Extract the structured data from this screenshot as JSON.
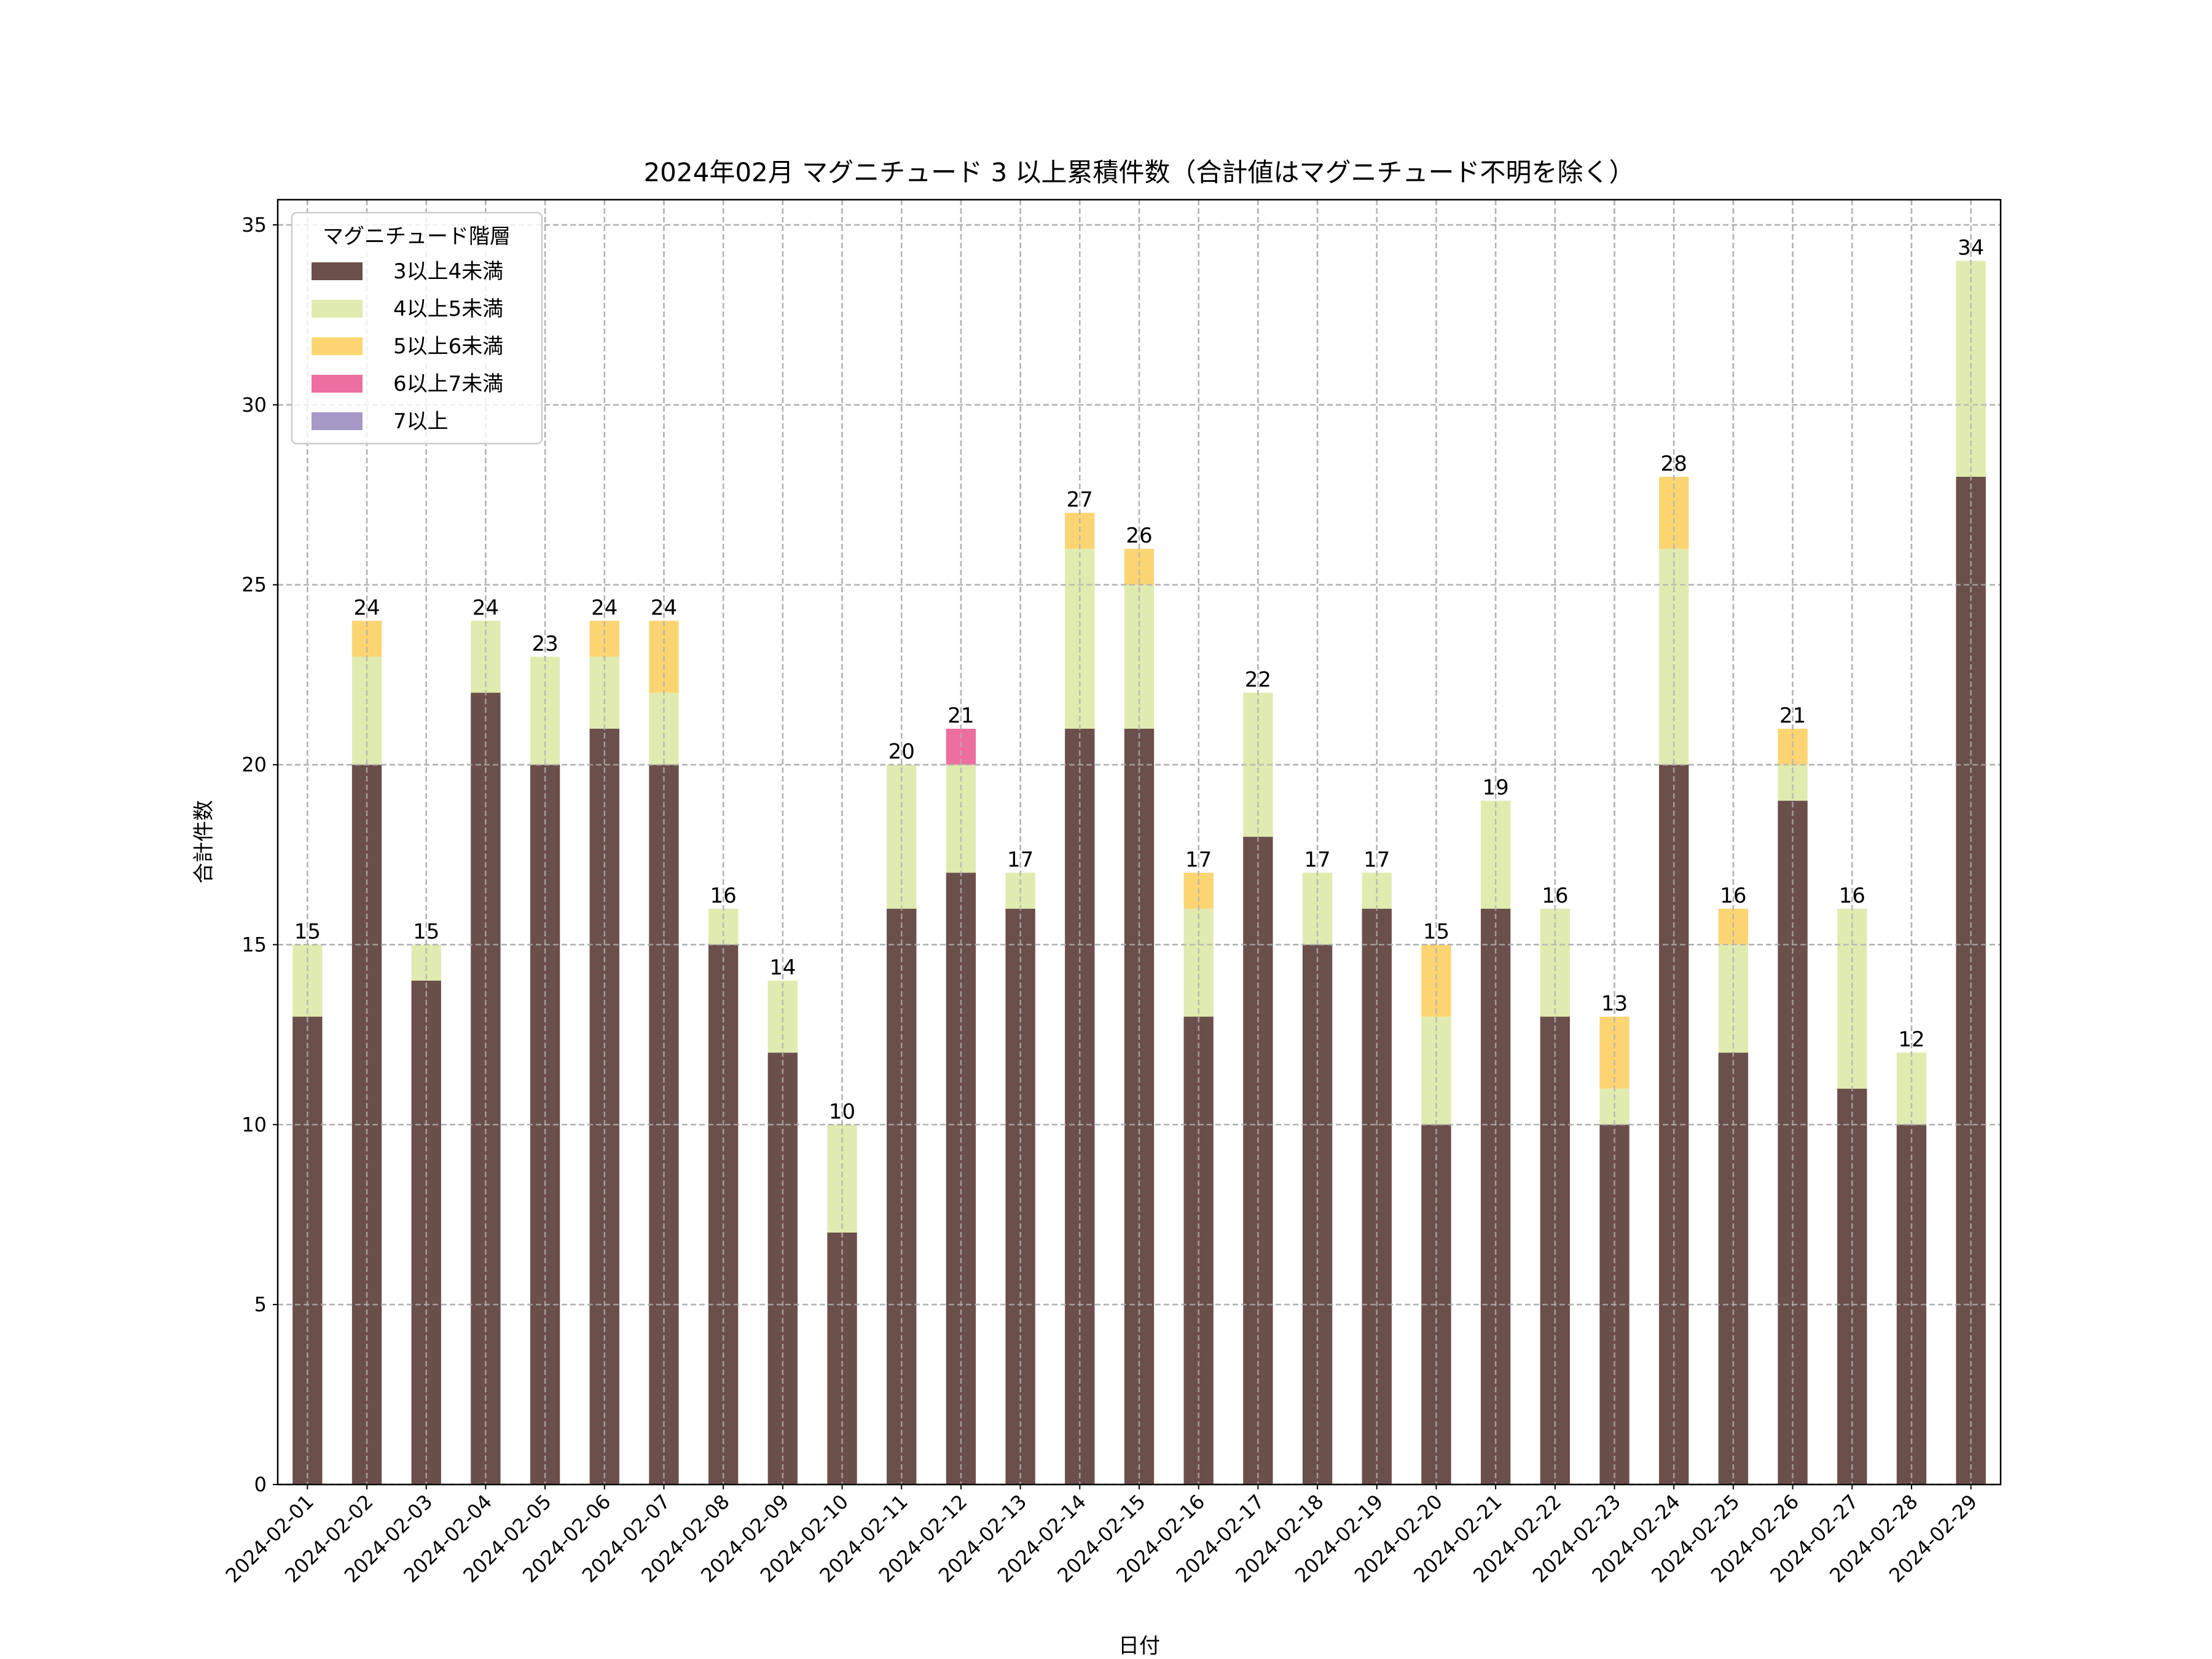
{
  "chart_data": {
    "type": "bar",
    "stacked": true,
    "title": "2024年02月 マグニチュード 3 以上累積件数（合計値はマグニチュード不明を除く）",
    "xlabel": "日付",
    "ylabel": "合計件数",
    "ylim": [
      0,
      35.7
    ],
    "yticks": [
      0,
      5,
      10,
      15,
      20,
      25,
      30,
      35
    ],
    "grid": true,
    "legend": {
      "title": "マグニチュード階層",
      "placement": "top-left"
    },
    "categories": [
      "2024-02-01",
      "2024-02-02",
      "2024-02-03",
      "2024-02-04",
      "2024-02-05",
      "2024-02-06",
      "2024-02-07",
      "2024-02-08",
      "2024-02-09",
      "2024-02-10",
      "2024-02-11",
      "2024-02-12",
      "2024-02-13",
      "2024-02-14",
      "2024-02-15",
      "2024-02-16",
      "2024-02-17",
      "2024-02-18",
      "2024-02-19",
      "2024-02-20",
      "2024-02-21",
      "2024-02-22",
      "2024-02-23",
      "2024-02-24",
      "2024-02-25",
      "2024-02-26",
      "2024-02-27",
      "2024-02-28",
      "2024-02-29"
    ],
    "series": [
      {
        "name": "3以上4未満",
        "color": "#6b4f4a",
        "values": [
          13,
          20,
          14,
          22,
          20,
          21,
          20,
          15,
          12,
          7,
          16,
          17,
          16,
          21,
          21,
          13,
          18,
          15,
          16,
          10,
          16,
          13,
          10,
          20,
          12,
          19,
          11,
          10,
          28
        ]
      },
      {
        "name": "4以上5未満",
        "color": "#e0ebb0",
        "values": [
          2,
          3,
          1,
          2,
          3,
          2,
          2,
          1,
          2,
          3,
          4,
          3,
          1,
          5,
          4,
          3,
          4,
          2,
          1,
          3,
          3,
          3,
          1,
          6,
          3,
          1,
          5,
          2,
          6
        ]
      },
      {
        "name": "5以上6未満",
        "color": "#fcd573",
        "values": [
          0,
          1,
          0,
          0,
          0,
          1,
          2,
          0,
          0,
          0,
          0,
          0,
          0,
          1,
          1,
          1,
          0,
          0,
          0,
          2,
          0,
          0,
          2,
          2,
          1,
          1,
          0,
          0,
          0
        ]
      },
      {
        "name": "6以上7未満",
        "color": "#ec6fa0",
        "values": [
          0,
          0,
          0,
          0,
          0,
          0,
          0,
          0,
          0,
          0,
          0,
          1,
          0,
          0,
          0,
          0,
          0,
          0,
          0,
          0,
          0,
          0,
          0,
          0,
          0,
          0,
          0,
          0,
          0
        ]
      },
      {
        "name": "7以上",
        "color": "#a599c8",
        "values": [
          0,
          0,
          0,
          0,
          0,
          0,
          0,
          0,
          0,
          0,
          0,
          0,
          0,
          0,
          0,
          0,
          0,
          0,
          0,
          0,
          0,
          0,
          0,
          0,
          0,
          0,
          0,
          0,
          0
        ]
      }
    ],
    "totals": [
      15,
      24,
      15,
      24,
      23,
      24,
      24,
      16,
      14,
      10,
      20,
      21,
      17,
      27,
      26,
      17,
      22,
      17,
      17,
      15,
      19,
      16,
      13,
      28,
      16,
      21,
      16,
      12,
      34
    ]
  }
}
